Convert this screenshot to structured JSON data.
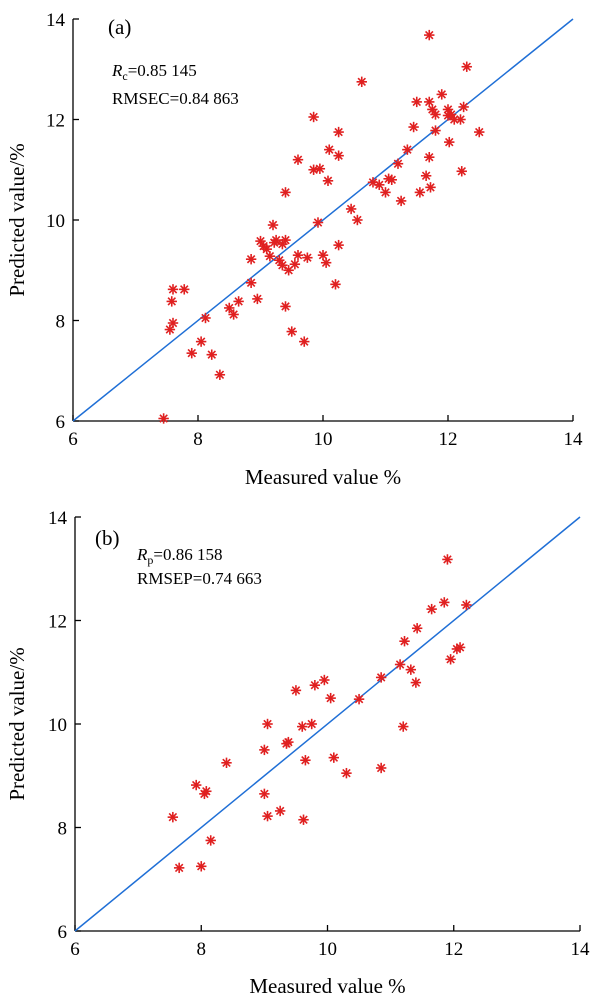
{
  "chart_data": [
    {
      "type": "scatter",
      "panel_label": "(a)",
      "xlabel": "Measured value %",
      "ylabel": "Predicted value/%",
      "xlim": [
        6,
        14
      ],
      "ylim": [
        6,
        14
      ],
      "xticks": [
        "6",
        "8",
        "10",
        "12",
        "14"
      ],
      "yticks": [
        "6",
        "8",
        "10",
        "12",
        "14"
      ],
      "stats": [
        {
          "name_main": "R",
          "name_sub": "c",
          "value": "=0.85 145"
        },
        {
          "name_main": "RMSEC",
          "name_sub": "",
          "value": "=0.84 863"
        }
      ],
      "reference_line": {
        "from": [
          6,
          6
        ],
        "to": [
          14,
          14
        ]
      },
      "marker_color": "#e02020",
      "line_color": "#1f6fd6",
      "points": [
        [
          7.45,
          6.05
        ],
        [
          7.55,
          7.82
        ],
        [
          7.6,
          7.95
        ],
        [
          7.58,
          8.38
        ],
        [
          7.6,
          8.62
        ],
        [
          7.78,
          8.62
        ],
        [
          7.9,
          7.35
        ],
        [
          8.05,
          7.58
        ],
        [
          8.12,
          8.05
        ],
        [
          8.22,
          7.32
        ],
        [
          8.35,
          6.92
        ],
        [
          8.5,
          8.25
        ],
        [
          8.57,
          8.12
        ],
        [
          8.65,
          8.38
        ],
        [
          8.85,
          8.75
        ],
        [
          8.85,
          9.22
        ],
        [
          8.95,
          8.43
        ],
        [
          9.0,
          9.58
        ],
        [
          9.05,
          9.48
        ],
        [
          9.1,
          9.42
        ],
        [
          9.15,
          9.28
        ],
        [
          9.2,
          9.9
        ],
        [
          9.22,
          9.55
        ],
        [
          9.25,
          9.6
        ],
        [
          9.3,
          9.2
        ],
        [
          9.35,
          9.1
        ],
        [
          9.35,
          9.52
        ],
        [
          9.4,
          9.6
        ],
        [
          9.4,
          8.28
        ],
        [
          9.4,
          10.55
        ],
        [
          9.45,
          9.0
        ],
        [
          9.5,
          7.78
        ],
        [
          9.55,
          9.12
        ],
        [
          9.6,
          9.3
        ],
        [
          9.6,
          11.2
        ],
        [
          9.7,
          7.58
        ],
        [
          9.75,
          9.25
        ],
        [
          9.85,
          12.05
        ],
        [
          9.85,
          11.0
        ],
        [
          9.92,
          9.95
        ],
        [
          9.95,
          11.02
        ],
        [
          10.0,
          9.3
        ],
        [
          10.05,
          9.15
        ],
        [
          10.08,
          10.78
        ],
        [
          10.1,
          11.4
        ],
        [
          10.2,
          8.72
        ],
        [
          10.25,
          9.5
        ],
        [
          10.25,
          11.28
        ],
        [
          10.25,
          11.75
        ],
        [
          10.45,
          10.22
        ],
        [
          10.55,
          10.0
        ],
        [
          10.62,
          12.75
        ],
        [
          10.8,
          10.75
        ],
        [
          10.9,
          10.7
        ],
        [
          11.0,
          10.55
        ],
        [
          11.05,
          10.82
        ],
        [
          11.1,
          10.8
        ],
        [
          11.2,
          11.12
        ],
        [
          11.25,
          10.38
        ],
        [
          11.35,
          11.4
        ],
        [
          11.45,
          11.85
        ],
        [
          11.5,
          12.35
        ],
        [
          11.55,
          10.55
        ],
        [
          11.65,
          10.88
        ],
        [
          11.7,
          13.68
        ],
        [
          11.7,
          12.35
        ],
        [
          11.7,
          11.25
        ],
        [
          11.72,
          10.65
        ],
        [
          11.75,
          12.2
        ],
        [
          11.8,
          12.1
        ],
        [
          11.8,
          11.78
        ],
        [
          11.9,
          12.5
        ],
        [
          12.0,
          12.08
        ],
        [
          12.02,
          11.55
        ],
        [
          12.05,
          12.1
        ],
        [
          12.1,
          12.0
        ],
        [
          12.2,
          12.0
        ],
        [
          12.22,
          10.97
        ],
        [
          12.25,
          12.25
        ],
        [
          12.3,
          13.05
        ],
        [
          12.5,
          11.75
        ],
        [
          12.0,
          12.2
        ]
      ]
    },
    {
      "type": "scatter",
      "panel_label": "(b)",
      "xlabel": "Measured value %",
      "ylabel": "Predicted value/%",
      "xlim": [
        6,
        14
      ],
      "ylim": [
        6,
        14
      ],
      "xticks": [
        "6",
        "8",
        "10",
        "12",
        "14"
      ],
      "yticks": [
        "6",
        "8",
        "10",
        "12",
        "14"
      ],
      "stats": [
        {
          "name_main": "R",
          "name_sub": "p",
          "value": "=0.86 158"
        },
        {
          "name_main": "RMSEP",
          "name_sub": "",
          "value": "=0.74 663"
        }
      ],
      "reference_line": {
        "from": [
          6,
          6
        ],
        "to": [
          14,
          14
        ]
      },
      "marker_color": "#e02020",
      "line_color": "#1f6fd6",
      "points": [
        [
          7.55,
          8.2
        ],
        [
          7.65,
          7.22
        ],
        [
          7.92,
          8.82
        ],
        [
          8.0,
          7.25
        ],
        [
          8.05,
          8.65
        ],
        [
          8.08,
          8.7
        ],
        [
          8.15,
          7.75
        ],
        [
          8.4,
          9.25
        ],
        [
          9.0,
          8.65
        ],
        [
          9.0,
          9.5
        ],
        [
          9.05,
          10.0
        ],
        [
          9.05,
          8.22
        ],
        [
          9.25,
          8.32
        ],
        [
          9.35,
          9.62
        ],
        [
          9.38,
          9.65
        ],
        [
          9.5,
          10.65
        ],
        [
          9.6,
          9.95
        ],
        [
          9.62,
          8.15
        ],
        [
          9.65,
          9.3
        ],
        [
          9.75,
          10.0
        ],
        [
          9.8,
          10.75
        ],
        [
          9.95,
          10.85
        ],
        [
          10.05,
          10.5
        ],
        [
          10.1,
          9.35
        ],
        [
          10.3,
          9.05
        ],
        [
          10.5,
          10.48
        ],
        [
          10.85,
          10.9
        ],
        [
          10.85,
          9.15
        ],
        [
          11.15,
          11.15
        ],
        [
          11.2,
          9.95
        ],
        [
          11.22,
          11.6
        ],
        [
          11.32,
          11.05
        ],
        [
          11.4,
          10.8
        ],
        [
          11.42,
          11.85
        ],
        [
          11.65,
          12.22
        ],
        [
          11.85,
          12.35
        ],
        [
          11.9,
          13.18
        ],
        [
          11.95,
          11.25
        ],
        [
          12.05,
          11.45
        ],
        [
          12.1,
          11.48
        ],
        [
          12.2,
          12.3
        ]
      ]
    }
  ]
}
